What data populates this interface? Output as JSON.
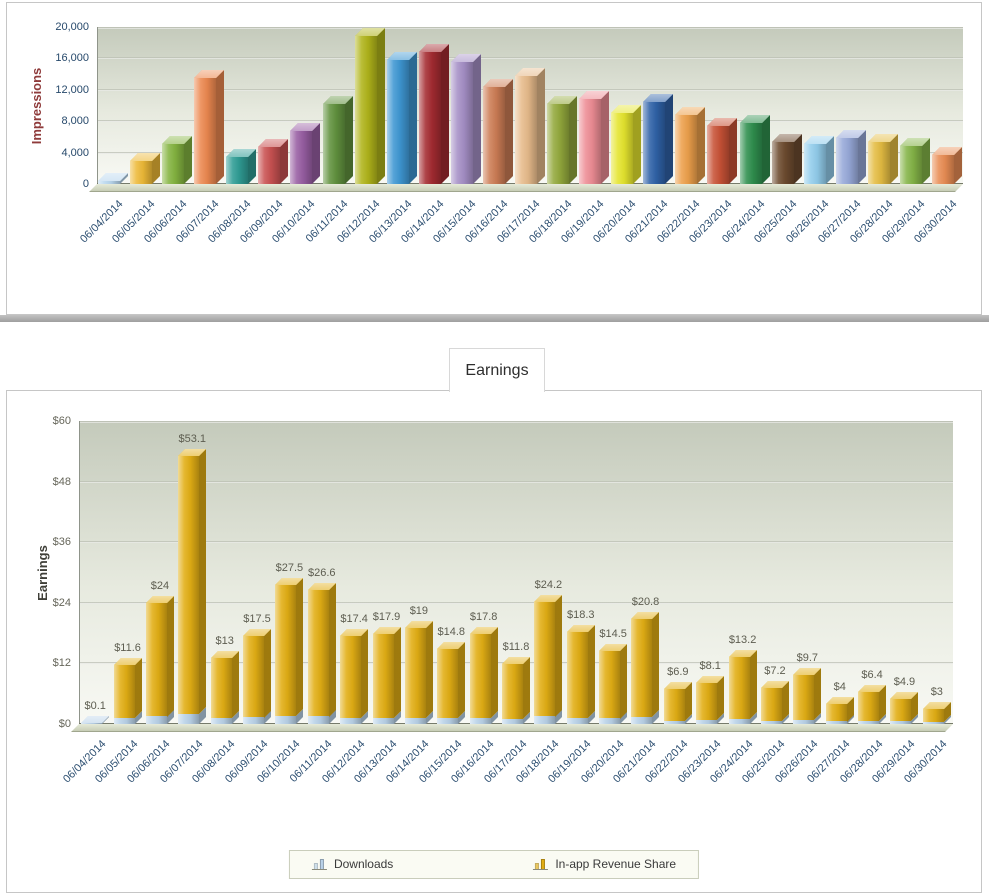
{
  "earnings_tab": {
    "label": "Earnings"
  },
  "chart_data": [
    {
      "type": "bar",
      "variant": "3d-column",
      "ylabel": "Impressions",
      "ymax": 20000,
      "grid": true,
      "yticks": [
        {
          "label": "20,000",
          "value": 20000
        },
        {
          "label": "16,000",
          "value": 16000
        },
        {
          "label": "12,000",
          "value": 12000
        },
        {
          "label": "8,000",
          "value": 8000
        },
        {
          "label": "4,000",
          "value": 4000
        },
        {
          "label": "0",
          "value": 0
        }
      ],
      "categories": [
        "06/04/2014",
        "06/05/2014",
        "06/06/2014",
        "06/07/2014",
        "06/08/2014",
        "06/09/2014",
        "06/10/2014",
        "06/11/2014",
        "06/12/2014",
        "06/13/2014",
        "06/14/2014",
        "06/15/2014",
        "06/16/2014",
        "06/17/2014",
        "06/18/2014",
        "06/19/2014",
        "06/20/2014",
        "06/21/2014",
        "06/22/2014",
        "06/23/2014",
        "06/24/2014",
        "06/25/2014",
        "06/26/2014",
        "06/27/2014",
        "06/28/2014",
        "06/29/2014",
        "06/30/2014"
      ],
      "values": [
        400,
        2900,
        5100,
        13500,
        3500,
        4700,
        6700,
        10200,
        18800,
        15800,
        16800,
        15600,
        12300,
        13800,
        10200,
        10800,
        9000,
        10500,
        8800,
        7400,
        7800,
        5300,
        5100,
        5900,
        5300,
        4800,
        3700
      ],
      "colors": [
        "#b9d7ee",
        "#edb937",
        "#84b440",
        "#ec8850",
        "#2f9d95",
        "#c95151",
        "#985ea3",
        "#61923e",
        "#b0b41a",
        "#3e97d3",
        "#a42b31",
        "#a58fc6",
        "#cd7d55",
        "#e7bb8b",
        "#93a93c",
        "#ee8d95",
        "#e5e52e",
        "#2f62a8",
        "#eda04b",
        "#c85236",
        "#2f8f4e",
        "#6d4b2f",
        "#92cdec",
        "#97a9d9",
        "#e4bc42",
        "#84b447",
        "#e98d54"
      ],
      "axis_title_color": "#8f3b3b",
      "tick_color": "#27496b",
      "date_label_color": "#2e5072"
    },
    {
      "type": "bar",
      "variant": "3d-stacked-column",
      "ylabel": "Earnings",
      "ymax": 60,
      "grid": true,
      "yticks": [
        {
          "label": "$60",
          "value": 60
        },
        {
          "label": "$48",
          "value": 48
        },
        {
          "label": "$36",
          "value": 36
        },
        {
          "label": "$24",
          "value": 24
        },
        {
          "label": "$12",
          "value": 12
        },
        {
          "label": "$0",
          "value": 0
        }
      ],
      "categories": [
        "06/04/2014",
        "06/05/2014",
        "06/06/2014",
        "06/07/2014",
        "06/08/2014",
        "06/09/2014",
        "06/10/2014",
        "06/11/2014",
        "06/12/2014",
        "06/13/2014",
        "06/14/2014",
        "06/15/2014",
        "06/16/2014",
        "06/17/2014",
        "06/18/2014",
        "06/19/2014",
        "06/20/2014",
        "06/21/2014",
        "06/22/2014",
        "06/23/2014",
        "06/24/2014",
        "06/25/2014",
        "06/26/2014",
        "06/27/2014",
        "06/28/2014",
        "06/29/2014",
        "06/30/2014"
      ],
      "series": [
        {
          "name": "Downloads",
          "color": "#b9d2e8",
          "values": [
            0.1,
            1.2,
            1.5,
            2.0,
            1.2,
            1.3,
            1.5,
            1.5,
            1.2,
            1.2,
            1.2,
            1.1,
            1.2,
            1.0,
            1.5,
            1.2,
            1.1,
            1.3,
            0.6,
            0.7,
            1.0,
            0.6,
            0.8,
            0.5,
            0.6,
            0.5,
            0.4
          ]
        },
        {
          "name": "In-app Revenue Share",
          "color": "#e2ae14",
          "values": [
            0.0,
            10.4,
            22.5,
            51.1,
            11.8,
            16.2,
            26.0,
            25.1,
            16.2,
            16.7,
            17.8,
            13.7,
            16.6,
            10.8,
            22.7,
            17.1,
            13.4,
            19.5,
            6.3,
            7.4,
            12.2,
            6.6,
            8.9,
            3.5,
            5.8,
            4.4,
            2.6
          ]
        }
      ],
      "totals": [
        0.1,
        11.6,
        24,
        53.1,
        13,
        17.5,
        27.5,
        26.6,
        17.4,
        17.9,
        19,
        14.8,
        17.8,
        11.8,
        24.2,
        18.3,
        14.5,
        20.8,
        6.9,
        8.1,
        13.2,
        7.2,
        9.7,
        4,
        6.4,
        4.9,
        3
      ],
      "bar_labels": [
        "$0.1",
        "$11.6",
        "$24",
        "$53.1",
        "$13",
        "$17.5",
        "$27.5",
        "$26.6",
        "$17.4",
        "$17.9",
        "$19",
        "$14.8",
        "$17.8",
        "$11.8",
        "$24.2",
        "$18.3",
        "$14.5",
        "$20.8",
        "$6.9",
        "$8.1",
        "$13.2",
        "$7.2",
        "$9.7",
        "$4",
        "$6.4",
        "$4.9",
        "$3"
      ],
      "legend": [
        {
          "label": "Downloads",
          "color": "#b9d2e8"
        },
        {
          "label": "In-app Revenue Share",
          "color": "#e2ae14"
        }
      ],
      "axis_title_color": "#3f3f38",
      "tick_color": "#66665a",
      "date_label_color": "#2e5072"
    }
  ]
}
